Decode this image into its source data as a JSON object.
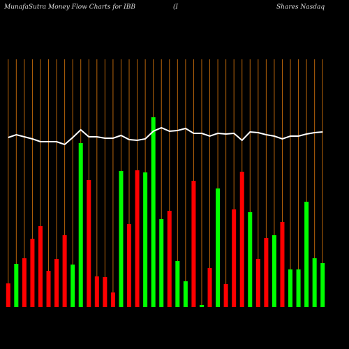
{
  "chart_data": {
    "type": "bar",
    "title": "MunafaSutra  Money Flow  Charts for IBB",
    "annotations": [
      "(I",
      "Shares Nasdaq"
    ],
    "categories": [
      null,
      null,
      null,
      null,
      null,
      null,
      null,
      null,
      null,
      null,
      null,
      null,
      null,
      null,
      null,
      null,
      null,
      null,
      null,
      null,
      null,
      null,
      null,
      null,
      null,
      null,
      null,
      null,
      null,
      null,
      null,
      null,
      null,
      null,
      null,
      null,
      null,
      null,
      null,
      null
    ],
    "values": [
      34,
      62,
      70,
      98,
      116,
      52,
      69,
      103,
      61,
      235,
      182,
      44,
      43,
      21,
      195,
      119,
      196,
      193,
      272,
      126,
      138,
      66,
      37,
      181,
      3,
      56,
      170,
      33,
      140,
      194,
      136,
      69,
      99,
      103,
      122,
      54,
      54,
      151,
      70,
      63
    ],
    "colors": [
      "#ff0000",
      "#00ff00",
      "#ff0000",
      "#ff0000",
      "#ff0000",
      "#ff0000",
      "#ff0000",
      "#ff0000",
      "#00ff00",
      "#00ff00",
      "#ff0000",
      "#ff0000",
      "#ff0000",
      "#ff0000",
      "#00ff00",
      "#ff0000",
      "#ff0000",
      "#00ff00",
      "#00ff00",
      "#00ff00",
      "#ff0000",
      "#00ff00",
      "#00ff00",
      "#ff0000",
      "#00ff00",
      "#ff0000",
      "#00ff00",
      "#ff0000",
      "#ff0000",
      "#ff0000",
      "#00ff00",
      "#ff0000",
      "#ff0000",
      "#00ff00",
      "#ff0000",
      "#00ff00",
      "#00ff00",
      "#00ff00",
      "#00ff00",
      "#00ff00"
    ],
    "line_values": [
      243,
      247,
      244,
      241,
      237,
      237,
      237,
      233,
      243,
      254,
      244,
      244,
      242,
      242,
      246,
      240,
      239,
      241,
      252,
      257,
      252,
      253,
      256,
      249,
      249,
      245,
      249,
      248,
      249,
      239,
      251,
      250,
      247,
      245,
      241,
      245,
      245,
      248,
      250,
      251
    ],
    "line_color": "#ffffff",
    "ylim": [
      0,
      355
    ],
    "grid": true,
    "grid_color": "#b8640a"
  }
}
